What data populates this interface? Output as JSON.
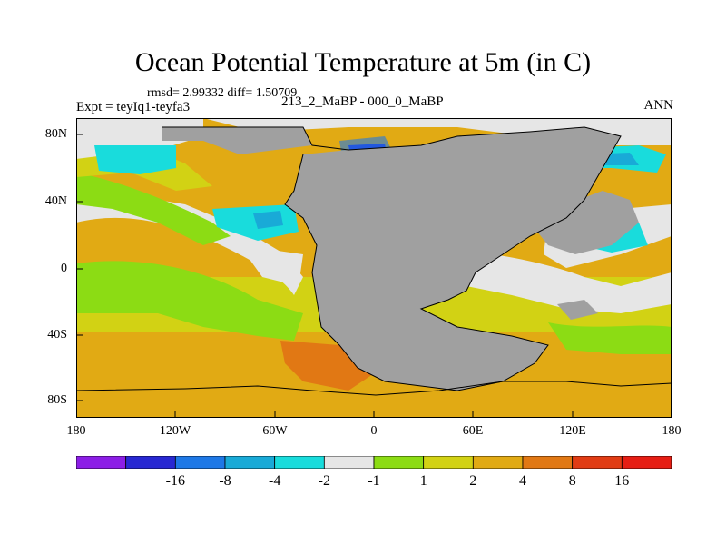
{
  "title": "Ocean Potential Temperature at 5m (in C)",
  "stats": "rmsd= 2.99332 diff= 1.50709",
  "experiment": "Expt = teyIq1-teyfa3",
  "period": "213_2_MaBP - 000_0_MaBP",
  "season": "ANN",
  "map": {
    "land_color": "#a0a0a0",
    "lat_ticks": [
      "80N",
      "40N",
      "0",
      "40S",
      "80S"
    ],
    "lon_ticks": [
      "180",
      "120W",
      "60W",
      "0",
      "60E",
      "120E",
      "180"
    ]
  },
  "colorbar": {
    "colors": [
      "#8c1ee6",
      "#2828d2",
      "#1e78e6",
      "#19aad7",
      "#19dcdc",
      "#e6e6e6",
      "#8cdc14",
      "#d2d214",
      "#e1aa14",
      "#e17814",
      "#e13c14",
      "#e61e14"
    ],
    "labels": [
      "-16",
      "-8",
      "-4",
      "-2",
      "-1",
      "1",
      "2",
      "4",
      "8",
      "16"
    ]
  }
}
